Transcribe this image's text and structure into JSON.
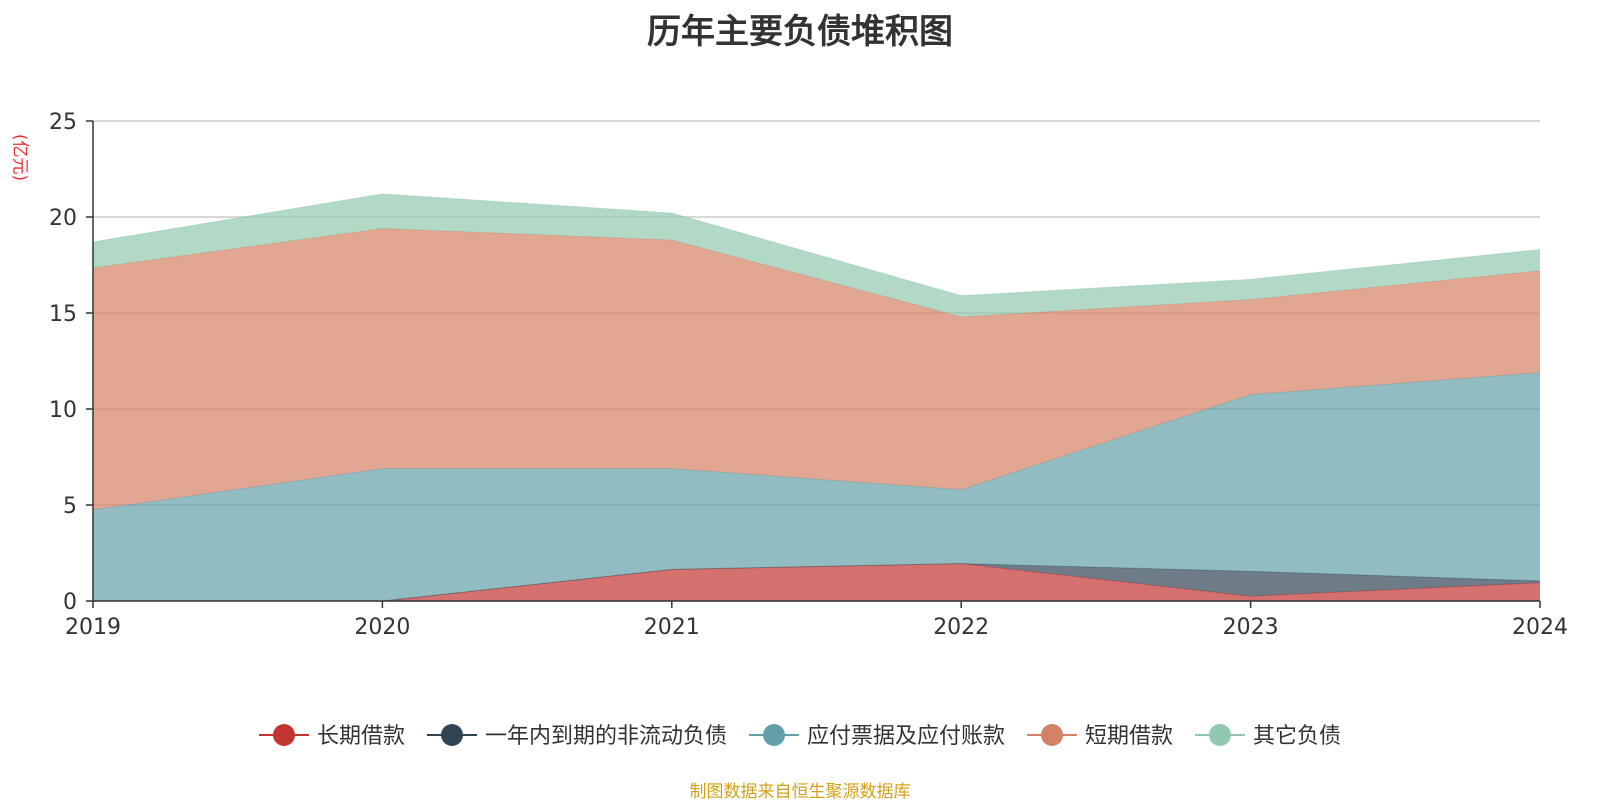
{
  "title": "历年主要负债堆积图",
  "unit": "(亿元)",
  "source": "制图数据来自恒生聚源数据库",
  "chart_data": {
    "type": "area",
    "stacked": true,
    "x": [
      "2019",
      "2020",
      "2021",
      "2022",
      "2023",
      "2024"
    ],
    "ylim": [
      0,
      25
    ],
    "yticks": [
      "0",
      "5",
      "10",
      "15",
      "20",
      "25"
    ],
    "grid": true,
    "legend_position": "bottom",
    "series": [
      {
        "name": "长期借款",
        "color": "#c23531",
        "values": [
          0,
          0,
          1.65,
          1.95,
          0.25,
          0.95
        ]
      },
      {
        "name": "一年内到期的非流动负债",
        "color": "#2f4554",
        "values": [
          0,
          0,
          0,
          0,
          1.3,
          0.1
        ]
      },
      {
        "name": "应付票据及应付账款",
        "color": "#61a0a8",
        "values": [
          4.75,
          6.9,
          5.25,
          3.85,
          9.2,
          10.85
        ]
      },
      {
        "name": "短期借款",
        "color": "#d48265",
        "values": [
          12.6,
          12.5,
          11.9,
          9.0,
          4.95,
          5.3
        ]
      },
      {
        "name": "其它负债",
        "color": "#91c7ae",
        "values": [
          1.35,
          1.8,
          1.4,
          1.1,
          1.05,
          1.1
        ]
      }
    ]
  }
}
